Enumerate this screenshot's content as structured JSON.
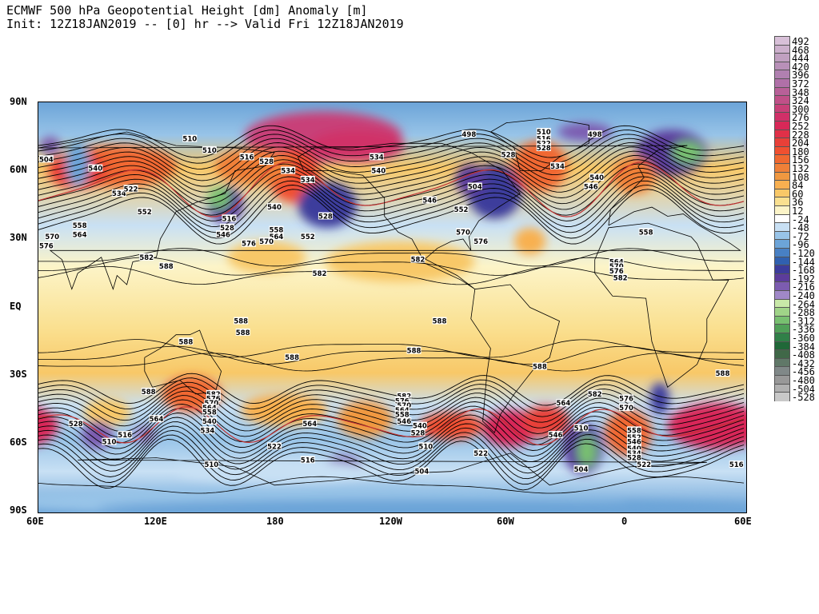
{
  "title": {
    "line1": "ECMWF 500 hPa Geopotential Height [dm] Anomaly [m]",
    "line2": "Init: 12Z18JAN2019 -- [0] hr --> Valid Fri 12Z18JAN2019"
  },
  "lat_labels": [
    "90N",
    "60N",
    "30N",
    "EQ",
    "30S",
    "60S",
    "90S"
  ],
  "lon_labels": [
    "60E",
    "120E",
    "180",
    "120W",
    "60W",
    "0",
    "60E"
  ],
  "colorbar": {
    "labels": [
      "492",
      "468",
      "444",
      "420",
      "396",
      "372",
      "348",
      "324",
      "300",
      "276",
      "252",
      "228",
      "204",
      "180",
      "156",
      "132",
      "108",
      "84",
      "60",
      "36",
      "12",
      "-24",
      "-48",
      "-72",
      "-96",
      "-120",
      "-144",
      "-168",
      "-192",
      "-216",
      "-240",
      "-264",
      "-288",
      "-312",
      "-336",
      "-360",
      "-384",
      "-408",
      "-432",
      "-456",
      "-480",
      "-504",
      "-528"
    ],
    "colors": [
      "#d8c0d8",
      "#ccb0cc",
      "#c0a0c0",
      "#b890b8",
      "#b080b0",
      "#b070a8",
      "#b86098",
      "#c05088",
      "#c84078",
      "#d03068",
      "#d82858",
      "#e03048",
      "#e84038",
      "#f05030",
      "#f06830",
      "#f08038",
      "#f09840",
      "#f8b050",
      "#f8c868",
      "#fae090",
      "#fcf4c8",
      "#ffffff",
      "#c8e0f4",
      "#98c4e8",
      "#6ca4d8",
      "#4880c4",
      "#3060b0",
      "#3c3c9c",
      "#5c3c9c",
      "#7c5cb0",
      "#a088c8",
      "#c8e8a8",
      "#a0d488",
      "#78c070",
      "#50a058",
      "#308048",
      "#206838",
      "#406848",
      "#607868",
      "#808888",
      "#989898",
      "#b0b0b0",
      "#c8c8c8"
    ]
  },
  "contour_labels": [
    {
      "t": "504",
      "lon": 64,
      "lat": 65
    },
    {
      "t": "510",
      "lon": 137,
      "lat": 74
    },
    {
      "t": "510",
      "lon": 147,
      "lat": 69
    },
    {
      "t": "516",
      "lon": 166,
      "lat": 66
    },
    {
      "t": "540",
      "lon": 89,
      "lat": 61
    },
    {
      "t": "534",
      "lon": 101,
      "lat": 50
    },
    {
      "t": "522",
      "lon": 107,
      "lat": 52
    },
    {
      "t": "528",
      "lon": 176,
      "lat": 64
    },
    {
      "t": "534",
      "lon": 187,
      "lat": 60
    },
    {
      "t": "534",
      "lon": 197,
      "lat": 56
    },
    {
      "t": "552",
      "lon": 114,
      "lat": 42
    },
    {
      "t": "558",
      "lon": 81,
      "lat": 36
    },
    {
      "t": "564",
      "lon": 81,
      "lat": 32
    },
    {
      "t": "570",
      "lon": 67,
      "lat": 31
    },
    {
      "t": "576",
      "lon": 64,
      "lat": 27
    },
    {
      "t": "582",
      "lon": 115,
      "lat": 22
    },
    {
      "t": "588",
      "lon": 125,
      "lat": 18
    },
    {
      "t": "516",
      "lon": 157,
      "lat": 39
    },
    {
      "t": "528",
      "lon": 156,
      "lat": 35
    },
    {
      "t": "546",
      "lon": 154,
      "lat": 32
    },
    {
      "t": "540",
      "lon": 180,
      "lat": 44
    },
    {
      "t": "558",
      "lon": 181,
      "lat": 34
    },
    {
      "t": "564",
      "lon": 181,
      "lat": 31
    },
    {
      "t": "570",
      "lon": 176,
      "lat": 29
    },
    {
      "t": "576",
      "lon": 167,
      "lat": 28
    },
    {
      "t": "528",
      "lon": 206,
      "lat": 40
    },
    {
      "t": "552",
      "lon": 197,
      "lat": 31
    },
    {
      "t": "582",
      "lon": 203,
      "lat": 15
    },
    {
      "t": "534",
      "lon": 232,
      "lat": 66
    },
    {
      "t": "540",
      "lon": 233,
      "lat": 60
    },
    {
      "t": "498",
      "lon": 279,
      "lat": 76
    },
    {
      "t": "504",
      "lon": 282,
      "lat": 53
    },
    {
      "t": "528",
      "lon": 299,
      "lat": 67
    },
    {
      "t": "546",
      "lon": 259,
      "lat": 47
    },
    {
      "t": "552",
      "lon": 275,
      "lat": 43
    },
    {
      "t": "570",
      "lon": 276,
      "lat": 33
    },
    {
      "t": "576",
      "lon": 285,
      "lat": 29
    },
    {
      "t": "582",
      "lon": 253,
      "lat": 21
    },
    {
      "t": "498",
      "lon": 343,
      "lat": 76
    },
    {
      "t": "510",
      "lon": 317,
      "lat": 77
    },
    {
      "t": "516",
      "lon": 317,
      "lat": 74
    },
    {
      "t": "522",
      "lon": 317,
      "lat": 72
    },
    {
      "t": "528",
      "lon": 317,
      "lat": 70
    },
    {
      "t": "534",
      "lon": 324,
      "lat": 62
    },
    {
      "t": "540",
      "lon": 344,
      "lat": 57
    },
    {
      "t": "546",
      "lon": 341,
      "lat": 53
    },
    {
      "t": "558",
      "lon": 369,
      "lat": 33
    },
    {
      "t": "564",
      "lon": 354,
      "lat": 20
    },
    {
      "t": "570",
      "lon": 354,
      "lat": 18
    },
    {
      "t": "576",
      "lon": 354,
      "lat": 16
    },
    {
      "t": "582",
      "lon": 356,
      "lat": 13
    },
    {
      "t": "588",
      "lon": 163,
      "lat": -6
    },
    {
      "t": "588",
      "lon": 164,
      "lat": -11
    },
    {
      "t": "588",
      "lon": 135,
      "lat": -15
    },
    {
      "t": "588",
      "lon": 264,
      "lat": -6
    },
    {
      "t": "588",
      "lon": 189,
      "lat": -22
    },
    {
      "t": "588",
      "lon": 251,
      "lat": -19
    },
    {
      "t": "588",
      "lon": 315,
      "lat": -26
    },
    {
      "t": "588",
      "lon": 408,
      "lat": -29
    },
    {
      "t": "588",
      "lon": 116,
      "lat": -37
    },
    {
      "t": "582",
      "lon": 149,
      "lat": -38
    },
    {
      "t": "576",
      "lon": 149,
      "lat": -40
    },
    {
      "t": "570",
      "lon": 148,
      "lat": -42
    },
    {
      "t": "564",
      "lon": 147,
      "lat": -44
    },
    {
      "t": "558",
      "lon": 147,
      "lat": -46
    },
    {
      "t": "540",
      "lon": 147,
      "lat": -50
    },
    {
      "t": "534",
      "lon": 146,
      "lat": -54
    },
    {
      "t": "564",
      "lon": 120,
      "lat": -49
    },
    {
      "t": "528",
      "lon": 79,
      "lat": -51
    },
    {
      "t": "516",
      "lon": 104,
      "lat": -56
    },
    {
      "t": "510",
      "lon": 96,
      "lat": -59
    },
    {
      "t": "522",
      "lon": 180,
      "lat": -61
    },
    {
      "t": "516",
      "lon": 197,
      "lat": -67
    },
    {
      "t": "510",
      "lon": 148,
      "lat": -69
    },
    {
      "t": "564",
      "lon": 198,
      "lat": -51
    },
    {
      "t": "582",
      "lon": 246,
      "lat": -39
    },
    {
      "t": "576",
      "lon": 245,
      "lat": -41
    },
    {
      "t": "570",
      "lon": 246,
      "lat": -43
    },
    {
      "t": "564",
      "lon": 245,
      "lat": -45
    },
    {
      "t": "558",
      "lon": 245,
      "lat": -47
    },
    {
      "t": "546",
      "lon": 246,
      "lat": -50
    },
    {
      "t": "540",
      "lon": 254,
      "lat": -52
    },
    {
      "t": "528",
      "lon": 253,
      "lat": -55
    },
    {
      "t": "510",
      "lon": 257,
      "lat": -61
    },
    {
      "t": "504",
      "lon": 255,
      "lat": -72
    },
    {
      "t": "522",
      "lon": 285,
      "lat": -64
    },
    {
      "t": "564",
      "lon": 327,
      "lat": -42
    },
    {
      "t": "582",
      "lon": 343,
      "lat": -38
    },
    {
      "t": "576",
      "lon": 359,
      "lat": -40
    },
    {
      "t": "570",
      "lon": 359,
      "lat": -44
    },
    {
      "t": "546",
      "lon": 323,
      "lat": -56
    },
    {
      "t": "510",
      "lon": 336,
      "lat": -53
    },
    {
      "t": "504",
      "lon": 336,
      "lat": -71
    },
    {
      "t": "558",
      "lon": 363,
      "lat": -54
    },
    {
      "t": "552",
      "lon": 363,
      "lat": -57
    },
    {
      "t": "546",
      "lon": 363,
      "lat": -59
    },
    {
      "t": "540",
      "lon": 363,
      "lat": -62
    },
    {
      "t": "534",
      "lon": 363,
      "lat": -64
    },
    {
      "t": "528",
      "lon": 363,
      "lat": -66
    },
    {
      "t": "522",
      "lon": 368,
      "lat": -69
    },
    {
      "t": "516",
      "lon": 415,
      "lat": -69
    }
  ],
  "anomaly_blobs": [
    {
      "lon": 205,
      "lat": 75,
      "rx": 40,
      "ry": 11,
      "c": "#c84078"
    },
    {
      "lon": 222,
      "lat": 71,
      "rx": 24,
      "ry": 7,
      "c": "#d03068"
    },
    {
      "lon": 190,
      "lat": 58,
      "rx": 13,
      "ry": 12,
      "c": "#f05030"
    },
    {
      "lon": 170,
      "lat": 62,
      "rx": 20,
      "ry": 8,
      "c": "#f08038"
    },
    {
      "lon": 100,
      "lat": 62,
      "rx": 30,
      "ry": 9,
      "c": "#f06830"
    },
    {
      "lon": 80,
      "lat": 60,
      "rx": 15,
      "ry": 8,
      "c": "#e84038"
    },
    {
      "lon": 155,
      "lat": 45,
      "rx": 9,
      "ry": 8,
      "c": "#5c3c9c"
    },
    {
      "lon": 152,
      "lat": 48,
      "rx": 6,
      "ry": 5,
      "c": "#78c070"
    },
    {
      "lon": 207,
      "lat": 45,
      "rx": 15,
      "ry": 10,
      "c": "#3c3c9c"
    },
    {
      "lon": 292,
      "lat": 51,
      "rx": 14,
      "ry": 12,
      "c": "#3c3c9c"
    },
    {
      "lon": 280,
      "lat": 56,
      "rx": 8,
      "ry": 7,
      "c": "#5c3c9c"
    },
    {
      "lon": 315,
      "lat": 62,
      "rx": 14,
      "ry": 11,
      "c": "#f06830"
    },
    {
      "lon": 338,
      "lat": 77,
      "rx": 14,
      "ry": 4,
      "c": "#7c5cb0"
    },
    {
      "lon": 382,
      "lat": 68,
      "rx": 18,
      "ry": 10,
      "c": "#5c3c9c"
    },
    {
      "lon": 390,
      "lat": 68,
      "rx": 8,
      "ry": 5,
      "c": "#78c070"
    },
    {
      "lon": 363,
      "lat": 58,
      "rx": 11,
      "ry": 8,
      "c": "#f08038"
    },
    {
      "lon": 310,
      "lat": 29,
      "rx": 8,
      "ry": 6,
      "c": "#f8b050"
    },
    {
      "lon": 244,
      "lat": 20,
      "rx": 38,
      "ry": 9,
      "c": "#f8c868"
    },
    {
      "lon": 176,
      "lat": 22,
      "rx": 20,
      "ry": 7,
      "c": "#f8c868"
    },
    {
      "lon": 80,
      "lat": 63,
      "rx": 6,
      "ry": 10,
      "c": "#6ca4d8"
    },
    {
      "lon": 66,
      "lat": 71,
      "rx": 5,
      "ry": 4,
      "c": "#7c5cb0"
    },
    {
      "lon": 138,
      "lat": -38,
      "rx": 15,
      "ry": 8,
      "c": "#f06830"
    },
    {
      "lon": 95,
      "lat": -46,
      "rx": 12,
      "ry": 6,
      "c": "#f8c868"
    },
    {
      "lon": 185,
      "lat": -45,
      "rx": 22,
      "ry": 7,
      "c": "#f8b050"
    },
    {
      "lon": 226,
      "lat": -49,
      "rx": 14,
      "ry": 8,
      "c": "#f09840"
    },
    {
      "lon": 300,
      "lat": -53,
      "rx": 14,
      "ry": 8,
      "c": "#d82858"
    },
    {
      "lon": 270,
      "lat": -52,
      "rx": 16,
      "ry": 6,
      "c": "#f05030"
    },
    {
      "lon": 318,
      "lat": -50,
      "rx": 12,
      "ry": 7,
      "c": "#e84038"
    },
    {
      "lon": 405,
      "lat": -52,
      "rx": 25,
      "ry": 10,
      "c": "#d82858"
    },
    {
      "lon": 360,
      "lat": -55,
      "rx": 12,
      "ry": 10,
      "c": "#f06830"
    },
    {
      "lon": 90,
      "lat": -56,
      "rx": 8,
      "ry": 6,
      "c": "#7c5cb0"
    },
    {
      "lon": 114,
      "lat": -56,
      "rx": 6,
      "ry": 4,
      "c": "#a088c8"
    },
    {
      "lon": 215,
      "lat": -70,
      "rx": 10,
      "ry": 5,
      "c": "#7c5cb0"
    },
    {
      "lon": 337,
      "lat": -62,
      "rx": 10,
      "ry": 11,
      "c": "#5c3c9c"
    },
    {
      "lon": 339,
      "lat": -63,
      "rx": 5,
      "ry": 7,
      "c": "#78c070"
    },
    {
      "lon": 376,
      "lat": -40,
      "rx": 5,
      "ry": 7,
      "c": "#3c3c9c"
    },
    {
      "lon": 200,
      "lat": -85,
      "rx": 160,
      "ry": 6,
      "c": "#98c4e8"
    },
    {
      "lon": 180,
      "lat": -72,
      "rx": 50,
      "ry": 5,
      "c": "#c8e0f4"
    },
    {
      "lon": 260,
      "lat": -88,
      "rx": 170,
      "ry": 4,
      "c": "#6ca4d8"
    }
  ]
}
